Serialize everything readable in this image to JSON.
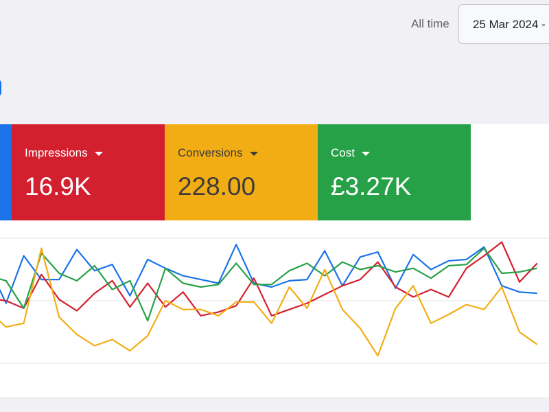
{
  "filter": {
    "range_label": "All time",
    "date_value": "25 Mar 2024 -"
  },
  "cards": {
    "impressions": {
      "title": "Impressions",
      "value": "16.9K",
      "color": "#d3202f"
    },
    "conversions": {
      "title": "Conversions",
      "value": "228.00",
      "color": "#f3ad14"
    },
    "cost": {
      "title": "Cost",
      "value": "£3.27K",
      "color": "#27a147"
    }
  },
  "chart_data": {
    "type": "line",
    "x": [
      0,
      1,
      2,
      3,
      4,
      5,
      6,
      7,
      8,
      9,
      10,
      11,
      12,
      13,
      14,
      15,
      16,
      17,
      18,
      19,
      20,
      21,
      22,
      23,
      24,
      25,
      26,
      27,
      28,
      29,
      30,
      31
    ],
    "ylim": [
      0,
      100
    ],
    "grid": true,
    "series": [
      {
        "color": "#1a73e8",
        "values": [
          78,
          48,
          86,
          67,
          67,
          91,
          74,
          79,
          54,
          83,
          76,
          70,
          67,
          64,
          95,
          64,
          61,
          66,
          67,
          90,
          62,
          85,
          89,
          60,
          87,
          75,
          82,
          83,
          93,
          62,
          57,
          56
        ]
      },
      {
        "color": "#d3202f",
        "values": [
          52,
          50,
          44,
          71,
          51,
          42,
          56,
          66,
          45,
          64,
          45,
          57,
          38,
          41,
          46,
          68,
          38,
          43,
          48,
          55,
          62,
          67,
          81,
          61,
          53,
          59,
          53,
          76,
          86,
          97,
          65,
          80
        ]
      },
      {
        "color": "#27a147",
        "values": [
          70,
          66,
          44,
          88,
          72,
          66,
          78,
          59,
          66,
          34,
          76,
          64,
          61,
          63,
          80,
          63,
          63,
          74,
          80,
          70,
          81,
          75,
          78,
          73,
          76,
          68,
          78,
          79,
          92,
          72,
          73,
          76
        ]
      },
      {
        "color": "#f3ad14",
        "values": [
          42,
          29,
          32,
          92,
          37,
          23,
          14,
          19,
          10,
          22,
          50,
          43,
          43,
          38,
          49,
          49,
          32,
          61,
          44,
          75,
          43,
          28,
          6,
          44,
          62,
          32,
          39,
          47,
          43,
          61,
          25,
          15
        ]
      }
    ]
  }
}
